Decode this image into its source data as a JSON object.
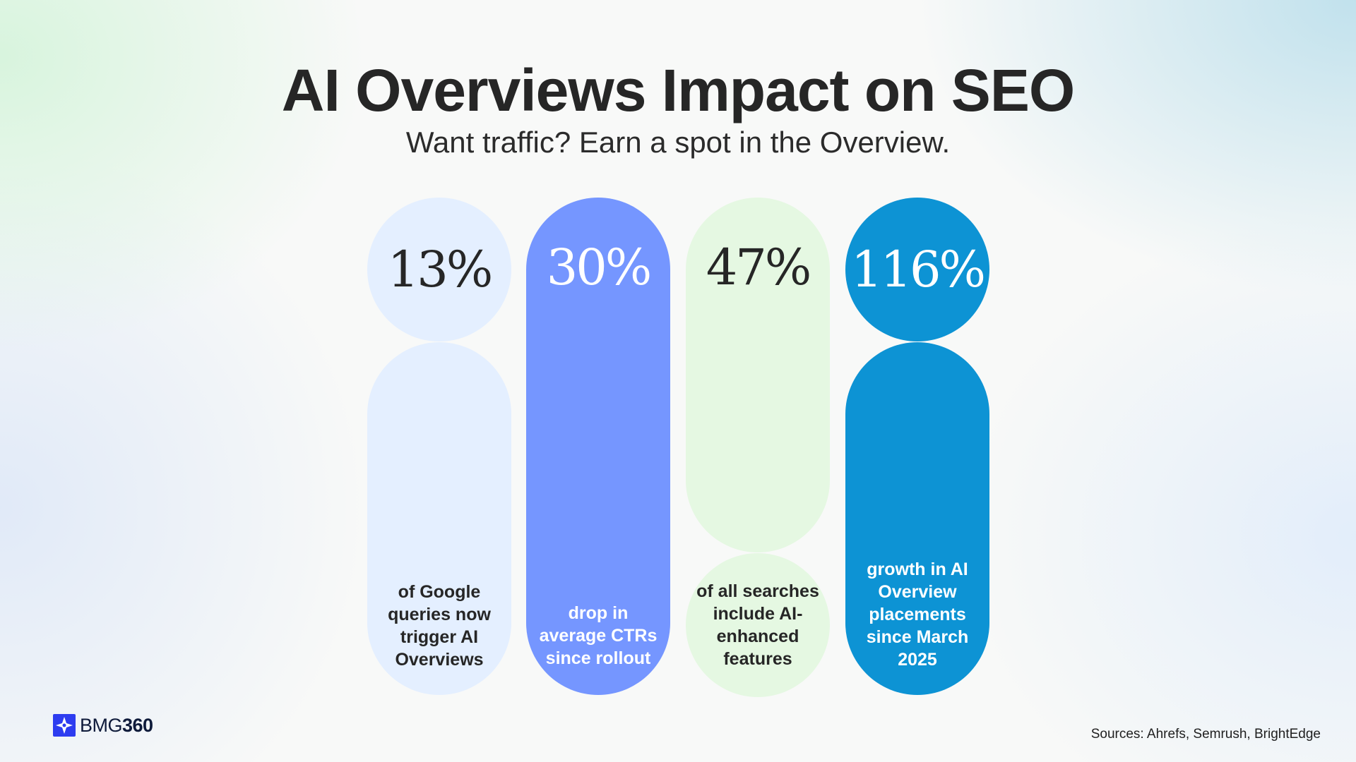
{
  "header": {
    "title": "AI Overviews Impact on SEO",
    "subtitle": "Want traffic? Earn a spot in the Overview."
  },
  "stats": [
    {
      "value": "13%",
      "label": "of Google queries now trigger AI Overviews",
      "percent": 13,
      "color": "#e4efff"
    },
    {
      "value": "30%",
      "label": "drop in average CTRs since rollout",
      "percent": 30,
      "color": "#7596ff"
    },
    {
      "value": "47%",
      "label": "of all searches include AI-enhanced features",
      "percent": 47,
      "color": "#e5f8e2"
    },
    {
      "value": "116%",
      "label": "growth in AI Overview placements since March 2025",
      "percent": 116,
      "color": "#0d93d4"
    }
  ],
  "footer": {
    "logo_prefix": "BMG",
    "logo_suffix": "360",
    "logo_icon": "bmg360-star-logo-icon",
    "sources": "Sources: Ahrefs, Semrush, BrightEdge"
  }
}
